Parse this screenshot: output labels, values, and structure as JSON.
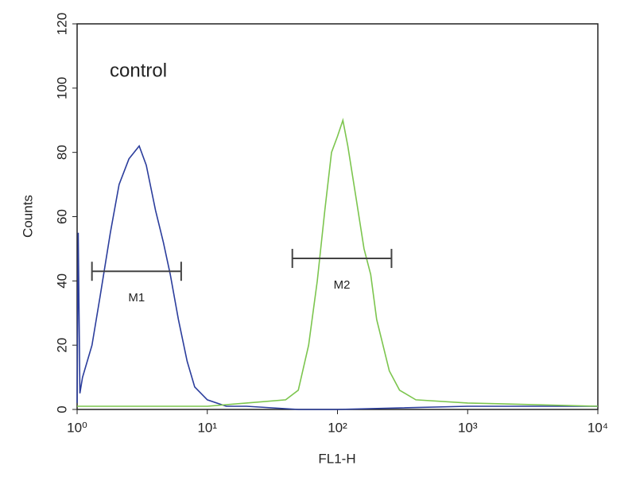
{
  "chart_data": {
    "type": "line",
    "annotation": "control",
    "xlabel": "FL1-H",
    "ylabel": "Counts",
    "xscale": "log",
    "xlim": [
      1,
      10000
    ],
    "xticks": [
      {
        "value": 1,
        "label": "10⁰"
      },
      {
        "value": 10,
        "label": "10¹"
      },
      {
        "value": 100,
        "label": "10²"
      },
      {
        "value": 1000,
        "label": "10³"
      },
      {
        "value": 10000,
        "label": "10⁴"
      }
    ],
    "ylim": [
      0,
      120
    ],
    "yticks": [
      0,
      20,
      40,
      60,
      80,
      100,
      120
    ],
    "series": [
      {
        "color": "#2b3d9c",
        "x": [
          1.0,
          1.02,
          1.05,
          1.1,
          1.3,
          1.5,
          1.8,
          2.1,
          2.5,
          3.0,
          3.4,
          4.0,
          4.6,
          5.2,
          6.0,
          7.0,
          8.0,
          10,
          14,
          20,
          50,
          100,
          1000,
          10000
        ],
        "values": [
          2,
          55,
          5,
          10,
          20,
          35,
          55,
          70,
          78,
          82,
          76,
          62,
          52,
          42,
          28,
          15,
          7,
          3,
          1,
          1,
          0,
          0,
          1,
          1
        ]
      },
      {
        "color": "#7cc54e",
        "x": [
          1,
          10,
          20,
          40,
          50,
          60,
          70,
          80,
          90,
          100,
          110,
          120,
          140,
          160,
          180,
          200,
          250,
          300,
          400,
          1000,
          10000
        ],
        "values": [
          1,
          1,
          2,
          3,
          6,
          20,
          40,
          62,
          80,
          85,
          90,
          82,
          65,
          50,
          42,
          28,
          12,
          6,
          3,
          2,
          1
        ]
      }
    ],
    "markers": [
      {
        "label": "M1",
        "x": [
          1.3,
          6.3
        ],
        "y": 43
      },
      {
        "label": "M2",
        "x": [
          45,
          260
        ],
        "y": 47
      }
    ]
  }
}
